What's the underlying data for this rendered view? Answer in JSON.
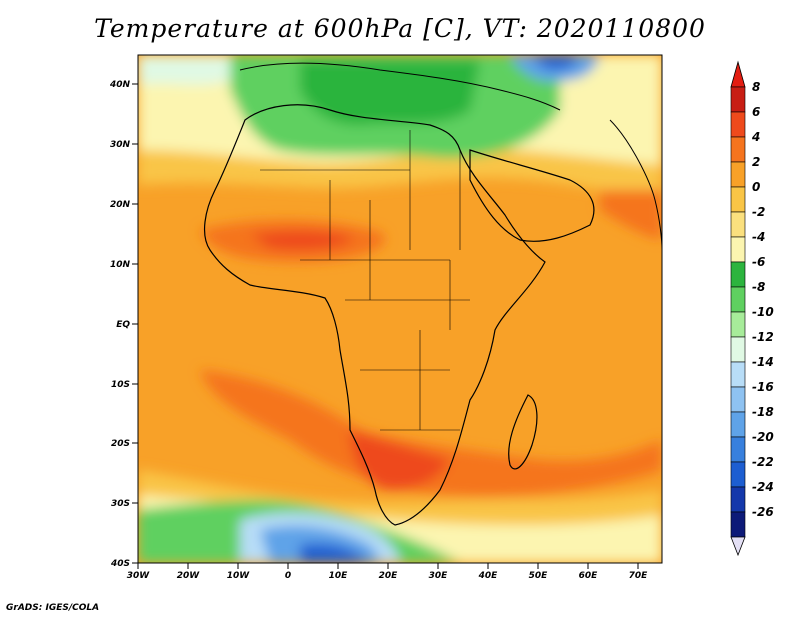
{
  "title": "Temperature at 600hPa [C], VT: 2020110800",
  "footer": "GrADS: IGES/COLA",
  "lat_ticks": [
    "40N",
    "30N",
    "20N",
    "10N",
    "EQ",
    "10S",
    "20S",
    "30S",
    "40S"
  ],
  "lon_ticks": [
    "30W",
    "20W",
    "10W",
    "0",
    "10E",
    "20E",
    "30E",
    "40E",
    "50E",
    "60E",
    "70E"
  ],
  "colorbar": {
    "labels": [
      "8",
      "6",
      "4",
      "2",
      "0",
      "-2",
      "-4",
      "-6",
      "-8",
      "-10",
      "-12",
      "-14",
      "-16",
      "-18",
      "-20",
      "-22",
      "-24",
      "-26"
    ],
    "colors": [
      "#c81e14",
      "#ee4a1c",
      "#f5741e",
      "#f8a128",
      "#f9c546",
      "#fbe07e",
      "#fcf5b0",
      "#2cb43e",
      "#5fd060",
      "#a7ec9a",
      "#e0f9e4",
      "#b8ddf7",
      "#8ec2f1",
      "#5fa3e8",
      "#3880dd",
      "#1d5ed1",
      "#1438ab",
      "#0d1a78"
    ],
    "top_color": "#e31d12",
    "bottom_color": "#e4e0f5"
  },
  "colors": {
    "lon_lat_frame": "#000000",
    "orange_mid": "#f8a128",
    "orange_dark": "#f5741e",
    "orange_light": "#f9c546",
    "yellow": "#fbe07e",
    "cream": "#fcf5b0",
    "green": "#5fd060",
    "dark_green": "#2cb43e",
    "light_green": "#a7ec9a",
    "blue_pale": "#b8ddf7",
    "blue_mid": "#5fa3e8",
    "blue_dark": "#1d5ed1"
  }
}
